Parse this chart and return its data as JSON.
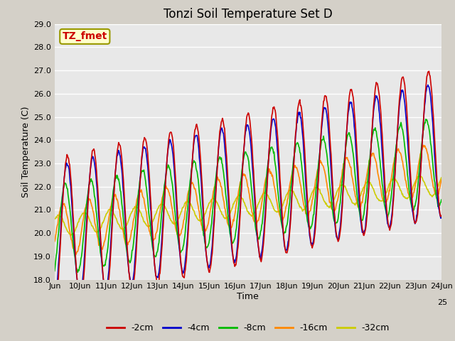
{
  "title": "Tonzi Soil Temperature Set D",
  "xlabel": "Time",
  "ylabel": "Soil Temperature (C)",
  "annotation": "TZ_fmet",
  "ylim": [
    18.0,
    29.0
  ],
  "yticks": [
    18.0,
    19.0,
    20.0,
    21.0,
    22.0,
    23.0,
    24.0,
    25.0,
    26.0,
    27.0,
    28.0,
    29.0
  ],
  "xtick_positions": [
    0,
    1,
    2,
    3,
    4,
    5,
    6,
    7,
    8,
    9,
    10,
    11,
    12,
    13,
    14,
    15
  ],
  "xtick_labels": [
    "Jun",
    "10Jun",
    "11Jun",
    "12Jun",
    "13Jun",
    "14Jun",
    "15Jun",
    "16Jun",
    "17Jun",
    "18Jun",
    "19Jun",
    "20Jun",
    "21Jun",
    "22Jun",
    "23Jun",
    "24Jun"
  ],
  "xtick_extra_label": "25",
  "series_colors": [
    "#cc0000",
    "#0000cc",
    "#00bb00",
    "#ff8800",
    "#cccc00"
  ],
  "series_labels": [
    "-2cm",
    "-4cm",
    "-8cm",
    "-16cm",
    "-32cm"
  ],
  "fig_facecolor": "#d4d0c8",
  "plot_facecolor": "#e8e8e8",
  "grid_color": "#ffffff",
  "annotation_color": "#cc0000",
  "annotation_bg": "#ffffcc",
  "annotation_border": "#999900",
  "title_fontsize": 12,
  "axis_label_fontsize": 9,
  "tick_fontsize": 8,
  "legend_fontsize": 9,
  "linewidth": 1.2
}
